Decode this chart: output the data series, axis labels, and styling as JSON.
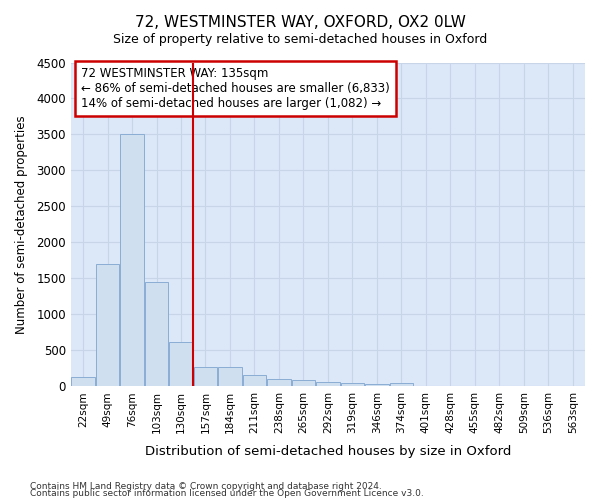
{
  "title": "72, WESTMINSTER WAY, OXFORD, OX2 0LW",
  "subtitle": "Size of property relative to semi-detached houses in Oxford",
  "xlabel": "Distribution of semi-detached houses by size in Oxford",
  "ylabel": "Number of semi-detached properties",
  "categories": [
    "22sqm",
    "49sqm",
    "76sqm",
    "103sqm",
    "130sqm",
    "157sqm",
    "184sqm",
    "211sqm",
    "238sqm",
    "265sqm",
    "292sqm",
    "319sqm",
    "346sqm",
    "374sqm",
    "401sqm",
    "428sqm",
    "455sqm",
    "482sqm",
    "509sqm",
    "536sqm",
    "563sqm"
  ],
  "values": [
    130,
    1700,
    3500,
    1450,
    620,
    270,
    265,
    160,
    100,
    90,
    55,
    50,
    40,
    50,
    0,
    0,
    0,
    0,
    0,
    0,
    0
  ],
  "bar_color": "#d0dff0",
  "bar_edge_color": "#8aadd4",
  "property_line_x": 4.5,
  "property_size": "135sqm",
  "pct_smaller": 86,
  "num_smaller": "6,833",
  "pct_larger": 14,
  "num_larger": "1,082",
  "annotation_box_color": "#cc0000",
  "ylim": [
    0,
    4500
  ],
  "yticks": [
    0,
    500,
    1000,
    1500,
    2000,
    2500,
    3000,
    3500,
    4000,
    4500
  ],
  "grid_color": "#c8d4e8",
  "bg_color": "#dce8f8",
  "fig_bg_color": "#ffffff",
  "footer1": "Contains HM Land Registry data © Crown copyright and database right 2024.",
  "footer2": "Contains public sector information licensed under the Open Government Licence v3.0."
}
